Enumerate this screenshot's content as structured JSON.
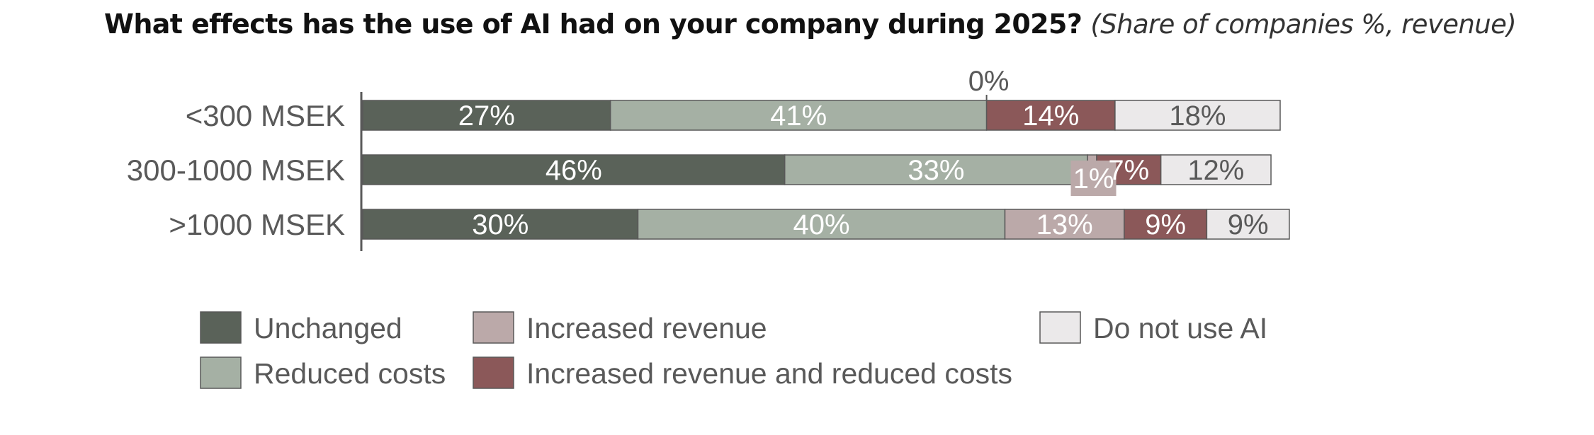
{
  "title": {
    "main": "What effects has the use of AI had on your company during 2025?",
    "subtitle": "(Share of companies %, revenue)"
  },
  "chart_data": {
    "type": "bar",
    "orientation": "horizontal",
    "stacked": true,
    "title": "What effects has the use of AI had on your company during 2025?",
    "subtitle": "(Share of companies %, revenue)",
    "xlabel": "",
    "ylabel": "",
    "xlim": [
      0,
      100
    ],
    "axis_tick_label": "0%",
    "axis_tick_value": 68,
    "grid": false,
    "legend_position": "bottom",
    "categories": [
      "<300 MSEK",
      "300-1000 MSEK",
      ">1000 MSEK"
    ],
    "series": [
      {
        "name": "Unchanged",
        "color": "#5a6259",
        "label_color": "#ffffff",
        "values": [
          27,
          46,
          30
        ]
      },
      {
        "name": "Reduced costs",
        "color": "#a5b0a4",
        "label_color": "#ffffff",
        "values": [
          41,
          33,
          40
        ]
      },
      {
        "name": "Increased revenue",
        "color": "#bba9a9",
        "label_color": "#ffffff",
        "values": [
          0,
          1,
          13
        ]
      },
      {
        "name": "Increased revenue and reduced costs",
        "color": "#8b5859",
        "label_color": "#ffffff",
        "values": [
          14,
          7,
          9
        ]
      },
      {
        "name": "Do not use AI",
        "color": "#ebe9ea",
        "label_color": "#595959",
        "values": [
          18,
          12,
          9
        ]
      }
    ],
    "data_labels": [
      [
        "27%",
        "41%",
        "",
        "14%",
        "18%"
      ],
      [
        "46%",
        "33%",
        "1%",
        "7%",
        "12%"
      ],
      [
        "30%",
        "40%",
        "13%",
        "9%",
        "9%"
      ]
    ]
  },
  "legend": {
    "items": [
      {
        "name": "Unchanged",
        "color": "#5a6259"
      },
      {
        "name": "Reduced costs",
        "color": "#a5b0a4"
      },
      {
        "name": "Increased revenue",
        "color": "#bba9a9"
      },
      {
        "name": "Increased revenue and reduced costs",
        "color": "#8b5859"
      },
      {
        "name": "Do not use AI",
        "color": "#ebe9ea"
      }
    ]
  }
}
